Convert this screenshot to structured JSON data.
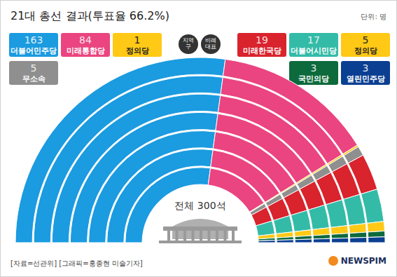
{
  "chart_data": {
    "type": "pie",
    "title": "21대 총선 결과(투표율 66.2%)",
    "unit": "단위: 명",
    "groups": [
      {
        "name": "지역구",
        "categories": [
          "더불어민주당",
          "미래통합당",
          "정의당",
          "무소속"
        ],
        "values": [
          163,
          84,
          1,
          5
        ],
        "colors": [
          "#1b9be0",
          "#ea4580",
          "#ffc915",
          "#8f8f8f"
        ]
      },
      {
        "name": "비례대표",
        "categories": [
          "미래한국당",
          "더불어시민당",
          "정의당",
          "국민의당",
          "열린민주당"
        ],
        "values": [
          19,
          17,
          5,
          3,
          3
        ],
        "colors": [
          "#d9232d",
          "#34bba8",
          "#ffc915",
          "#0d6a3c",
          "#0b3f92"
        ]
      }
    ],
    "center_text": "전체 300석",
    "source": "[자료=선관위] [그래픽=홍종현 미술기자]",
    "brand": "NEWSPIM"
  }
}
